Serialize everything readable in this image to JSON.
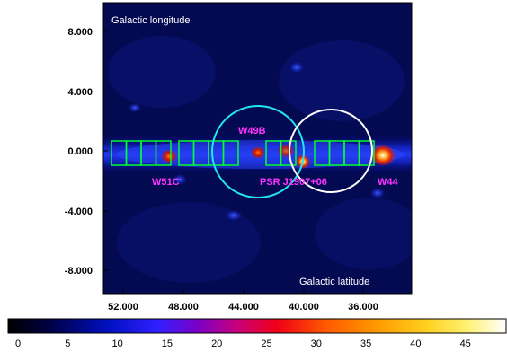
{
  "image": {
    "overlay_labels": {
      "corner_top": "Galactic longitude",
      "corner_bottom": "Galactic latitude",
      "w51c": "W51C",
      "w49b": "W49B",
      "psr": "PSR J1907+06",
      "w44": "W44"
    },
    "y_ticks": [
      "8.000",
      "4.000",
      "0.000",
      "-4.000",
      "-8.000"
    ],
    "x_ticks": [
      "52.000",
      "48.000",
      "44.000",
      "40.000",
      "36.000"
    ],
    "colorbar_ticks": [
      "0",
      "5",
      "10",
      "15",
      "20",
      "25",
      "30",
      "35",
      "40",
      "45"
    ],
    "colors": {
      "boxes": "#00ff33",
      "circle_w49b": "#22e5ee",
      "circle_psr": "#ffffff",
      "label_magenta": "#ff33ff",
      "overlay_text": "#ffffff"
    }
  }
}
